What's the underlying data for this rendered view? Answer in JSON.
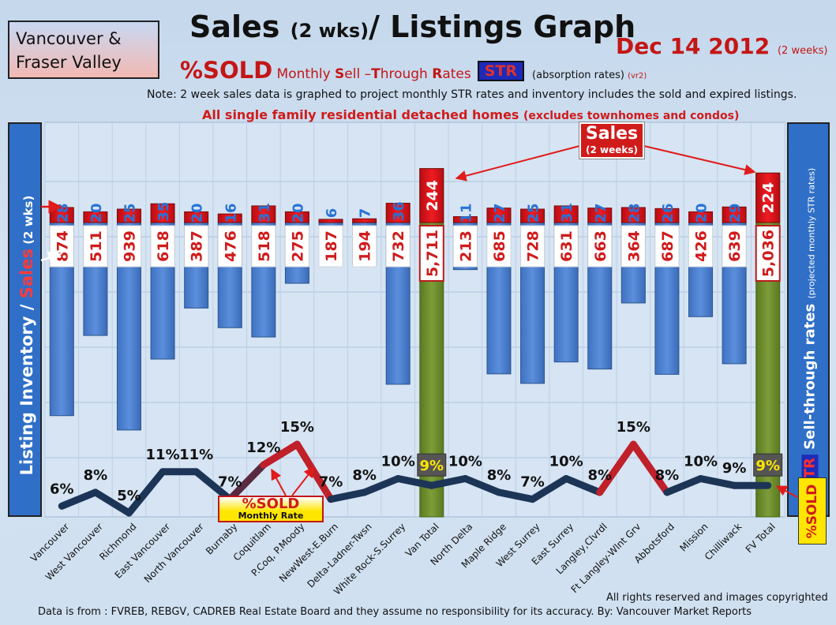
{
  "header": {
    "region_line1": "Vancouver &",
    "region_line2": "Fraser Valley",
    "title_main": "Sales ",
    "title_small": "(2 wks)",
    "title_rest": "/ Listings Graph",
    "date_main": "Dec 14 2012 ",
    "date_small": "(2 weeks)",
    "sold_label": "%SOLD",
    "str_prefix": " Monthly ",
    "str_s": "S",
    "str_ell": "ell –",
    "str_t": "T",
    "str_hrough": "hrough ",
    "str_r": "R",
    "str_ates": "ates",
    "str_badge": "STR",
    "str_desc": "(absorption rates)",
    "str_version": "(vr2)",
    "note": "Note: 2 week sales data is graphed to project monthly STR rates and inventory includes the sold and expired listings.",
    "scope_main": "All single family residential detached homes ",
    "scope_small": "(excludes townhomes and condos)"
  },
  "axes": {
    "left_inventory": "Listing Inventory / ",
    "left_sales": "Sales",
    "left_small": " (2 wks)",
    "right_str": "STR",
    "right_label": " Sell-through rates ",
    "right_small": "(projected monthly STR rates)",
    "sold_vertical": "%SOLD"
  },
  "callouts": {
    "sold_line1": "%SOLD",
    "sold_line2": "Monthly Rate",
    "sales_line1": "Sales",
    "sales_line2": "(2 weeks)"
  },
  "footer": {
    "copyright": "All rights reserved and  images copyrighted",
    "source": "Data is  from : FVREB, REBGV, CADREB Real Estate Board and they assume no responsibility  for its accuracy. By: Vancouver Market Reports"
  },
  "colors": {
    "inventory_bar": "#4a7fd0",
    "total_bar": "#6b8a2e",
    "sales_bar": "#d8141b",
    "str_line": "#1c3557",
    "str_peak": "#d8141b"
  },
  "chart_data": {
    "type": "bar",
    "categories": [
      "Vancouver",
      "West Vancouver",
      "Richmond",
      "East Vancouver",
      "North Vancouver",
      "Burnaby",
      "Coquitlam",
      "P.Coq, P.Moody",
      "NewWest-E.Burn",
      "Delta-Ladner-Twsn",
      "White Rock-S.Surrey",
      "Van Total",
      "North Delta",
      "Maple Ridge",
      "West Surrey",
      "East Surrey",
      "Langley,Clvrdl",
      "Ft Langley-Wlnt Grv",
      "Abbotsford",
      "Mission",
      "Chilliwack",
      "FV Total"
    ],
    "series": [
      {
        "name": "Listing Inventory",
        "values": [
          874,
          511,
          939,
          618,
          387,
          476,
          518,
          275,
          187,
          194,
          732,
          5711,
          213,
          685,
          728,
          631,
          663,
          364,
          687,
          426,
          639,
          5036
        ],
        "labels": [
          "874",
          "511",
          "939",
          "618",
          "387",
          "476",
          "518",
          "275",
          "187",
          "194",
          "732",
          "5,711",
          "213",
          "685",
          "728",
          "631",
          "663",
          "364",
          "687",
          "426",
          "639",
          "5,036"
        ]
      },
      {
        "name": "Sales (2 wks)",
        "values": [
          28,
          20,
          25,
          35,
          20,
          16,
          31,
          20,
          6,
          7,
          36,
          244,
          11,
          27,
          25,
          31,
          27,
          28,
          26,
          20,
          29,
          224
        ]
      },
      {
        "name": "%SOLD Monthly Rate",
        "values": [
          6,
          8,
          5,
          11,
          11,
          7,
          12,
          15,
          7,
          8,
          10,
          9,
          10,
          8,
          7,
          10,
          8,
          15,
          8,
          10,
          9,
          9
        ],
        "unit": "%"
      }
    ],
    "totals": [
      "Van Total",
      "FV Total"
    ],
    "legend": "none",
    "grid": true
  }
}
